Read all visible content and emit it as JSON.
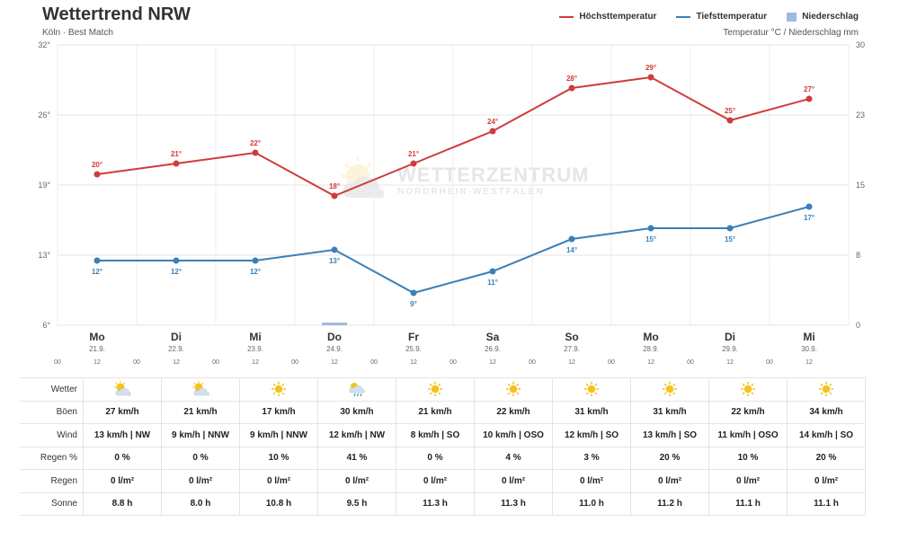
{
  "header": {
    "title": "Wettertrend NRW",
    "subtitle": "Köln · Best Match",
    "right_axis_title": "Temperatur °C / Niederschlag mm"
  },
  "legend": [
    {
      "label": "Höchsttemperatur",
      "color": "#d03b3b",
      "kind": "line"
    },
    {
      "label": "Tiefsttemperatur",
      "color": "#3a7fb8",
      "kind": "line"
    },
    {
      "label": "Niederschlag",
      "color": "#9dbbe3",
      "kind": "box"
    }
  ],
  "watermark": {
    "line1": "WETTERZENTRUM",
    "line2": "NORDRHEIN-WESTFALEN"
  },
  "chart_data": {
    "type": "line",
    "title": "Wettertrend NRW",
    "subtitle": "Köln · Best Match",
    "x": [
      "Mo 21.9.",
      "Di 22.9.",
      "Mi 23.9.",
      "Do 24.9.",
      "Fr 25.9.",
      "Sa 26.9.",
      "So 27.9.",
      "Mo 28.9.",
      "Di 29.9.",
      "Mi 30.9."
    ],
    "days": [
      "Mo",
      "Di",
      "Mi",
      "Do",
      "Fr",
      "Sa",
      "So",
      "Mo",
      "Di",
      "Mi"
    ],
    "dates": [
      "21.9.",
      "22.9.",
      "23.9.",
      "24.9.",
      "25.9.",
      "26.9.",
      "27.9.",
      "28.9.",
      "29.9.",
      "30.9."
    ],
    "hour_ticks": [
      "00",
      "12"
    ],
    "series": [
      {
        "name": "Höchsttemperatur",
        "color": "#d03b3b",
        "values": [
          20,
          21,
          22,
          18,
          21,
          24,
          28,
          29,
          25,
          27
        ],
        "labels": [
          "20°",
          "21°",
          "22°",
          "18°",
          "21°",
          "24°",
          "28°",
          "29°",
          "25°",
          "27°"
        ]
      },
      {
        "name": "Tiefsttemperatur",
        "color": "#3a7fb8",
        "values": [
          12,
          12,
          12,
          13,
          9,
          11,
          14,
          15,
          15,
          17
        ],
        "labels": [
          "12°",
          "12°",
          "12°",
          "13°",
          "9°",
          "11°",
          "14°",
          "15°",
          "15°",
          "17°"
        ]
      },
      {
        "name": "Niederschlag",
        "color": "#9dbbe3",
        "type": "bar",
        "values": [
          0,
          0,
          0,
          0.2,
          0,
          0,
          0,
          0,
          0,
          0
        ]
      }
    ],
    "y_left": {
      "ticks": [
        "32°",
        "26°",
        "19°",
        "13°",
        "6°"
      ],
      "min": 6,
      "max": 32
    },
    "y_right": {
      "ticks": [
        "30",
        "23",
        "15",
        "8",
        "0"
      ],
      "min": 0,
      "max": 30,
      "label": "Temperatur °C / Niederschlag mm"
    },
    "grid": true,
    "legend_position": "top-right"
  },
  "table": {
    "rows": [
      {
        "label": "Wetter",
        "type": "icons",
        "values": [
          "partly-cloudy-icon",
          "partly-cloudy-icon",
          "sun-icon",
          "cloud-rain-sun-icon",
          "sun-icon",
          "sun-icon",
          "sun-icon",
          "sun-icon",
          "sun-icon",
          "sun-icon"
        ]
      },
      {
        "label": "Böen",
        "values": [
          "27 km/h",
          "21 km/h",
          "17 km/h",
          "30 km/h",
          "21 km/h",
          "22 km/h",
          "31 km/h",
          "31 km/h",
          "22 km/h",
          "34 km/h"
        ]
      },
      {
        "label": "Wind",
        "values": [
          "13 km/h | NW",
          "9 km/h | NNW",
          "9 km/h | NNW",
          "12 km/h | NW",
          "8 km/h | SO",
          "10 km/h | OSO",
          "12 km/h | SO",
          "13 km/h | SO",
          "11 km/h | OSO",
          "14 km/h | SO"
        ]
      },
      {
        "label": "Regen %",
        "values": [
          "0 %",
          "0 %",
          "10 %",
          "41 %",
          "0 %",
          "4 %",
          "3 %",
          "20 %",
          "10 %",
          "20 %"
        ]
      },
      {
        "label": "Regen",
        "values": [
          "0 l/m²",
          "0 l/m²",
          "0 l/m²",
          "0 l/m²",
          "0 l/m²",
          "0 l/m²",
          "0 l/m²",
          "0 l/m²",
          "0 l/m²",
          "0 l/m²"
        ]
      },
      {
        "label": "Sonne",
        "values": [
          "8.8 h",
          "8.0 h",
          "10.8 h",
          "9.5 h",
          "11.3 h",
          "11.3 h",
          "11.0 h",
          "11.2 h",
          "11.1 h",
          "11.1 h"
        ]
      }
    ]
  }
}
